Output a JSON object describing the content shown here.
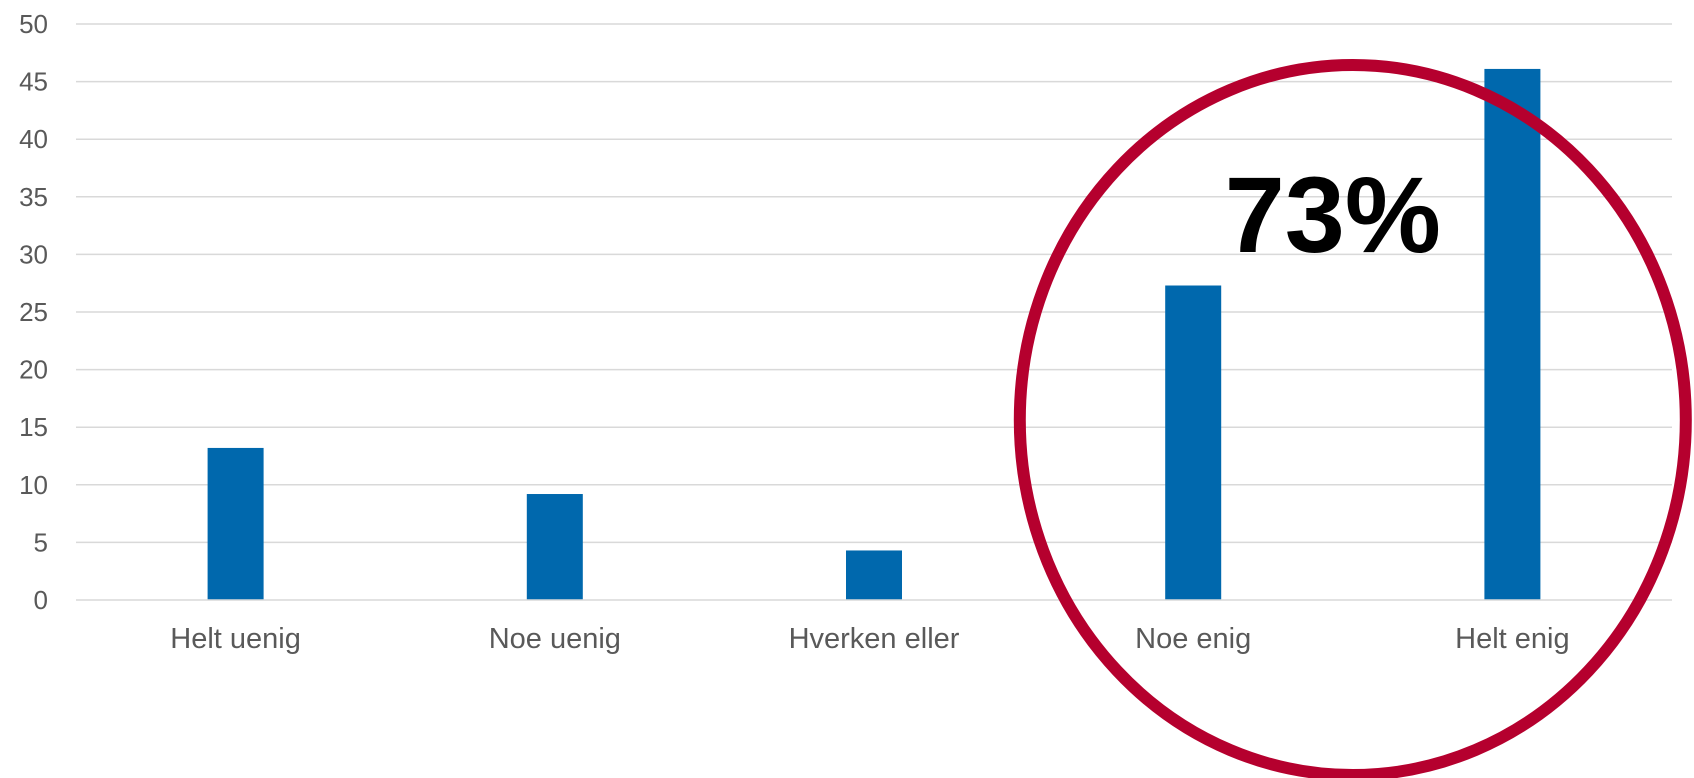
{
  "chart_data": {
    "type": "bar",
    "title": "",
    "xlabel": "",
    "ylabel": "",
    "categories": [
      "Helt uenig",
      "Noe uenig",
      "Hverken eller",
      "Noe enig",
      "Helt enig"
    ],
    "series": [
      {
        "values": [
          13.2,
          9.2,
          4.3,
          27.3,
          46.1
        ]
      }
    ],
    "ylim": [
      0,
      50
    ],
    "yticks": [
      "0",
      "5",
      "10",
      "15",
      "20",
      "25",
      "30",
      "35",
      "40",
      "45",
      "50"
    ],
    "grid": true,
    "legend": "none",
    "bar_color": "#0068AD",
    "gridline_color": "#D9D9D9",
    "annotation": {
      "text": "73%",
      "shape": "circle",
      "highlights": [
        "Noe enig",
        "Helt enig"
      ],
      "color": "#B5002E"
    }
  }
}
